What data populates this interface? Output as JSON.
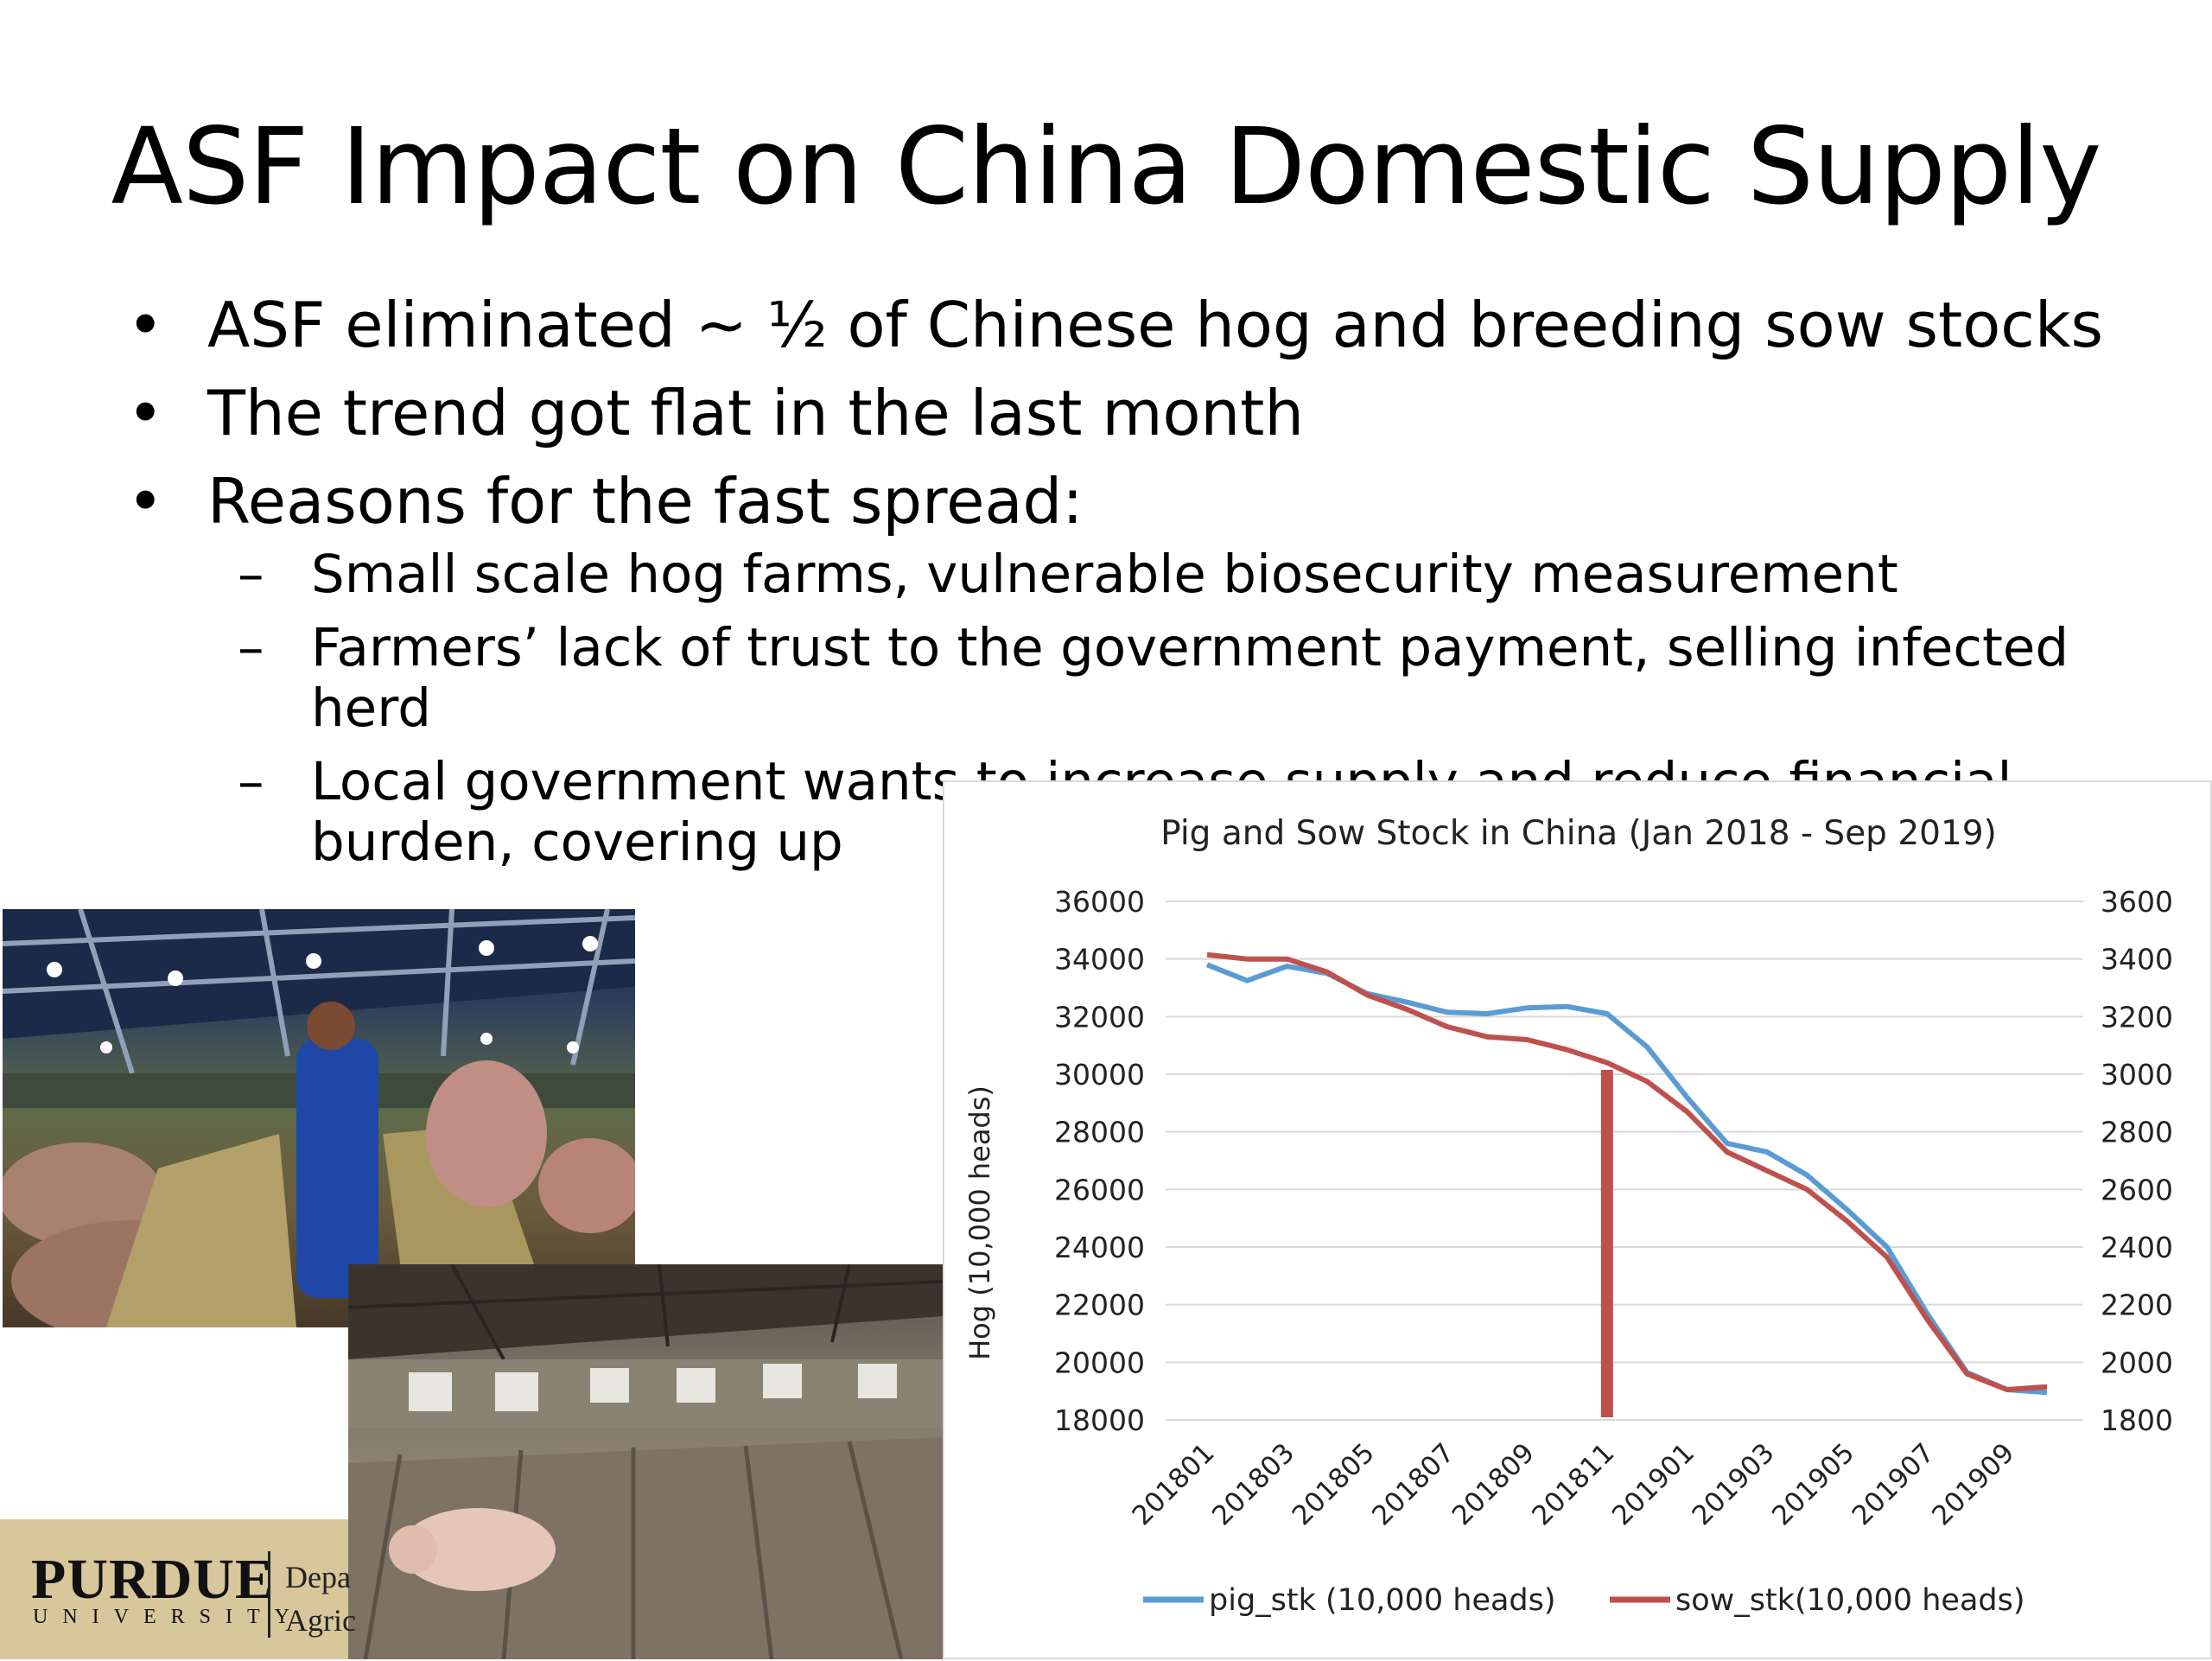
{
  "slide": {
    "title": "ASF Impact on China Domestic Supply",
    "bullets": [
      "ASF eliminated ~ ½ of Chinese hog and breeding sow stocks",
      "The trend got flat in the last month",
      "Reasons for the fast spread:"
    ],
    "sub_bullets": [
      "Small scale hog farms, vulnerable biosecurity measurement",
      "Farmers’ lack of trust to the government payment, selling infected herd",
      "Local government wants to increase supply and reduce financial burden, covering up"
    ],
    "logo": {
      "name": "PURDUE",
      "sub": "UNIVERSITY",
      "dept_line1": "Depa",
      "dept_line2": "Agric"
    }
  },
  "chart_data": {
    "type": "line",
    "title": "Pig and Sow Stock in China (Jan 2018 - Sep 2019)",
    "ylabel": "Hog (10,000 heads)",
    "ylabel_right": "",
    "ylim": [
      18000,
      36000
    ],
    "y2lim": [
      1800,
      3600
    ],
    "yticks": [
      "36000",
      "34000",
      "32000",
      "30000",
      "28000",
      "26000",
      "24000",
      "22000",
      "20000",
      "18000"
    ],
    "y2ticks": [
      "3600",
      "3400",
      "3200",
      "3000",
      "2800",
      "2600",
      "2400",
      "2200",
      "2000",
      "1800"
    ],
    "x": [
      "201801",
      "201802",
      "201803",
      "201804",
      "201805",
      "201806",
      "201807",
      "201808",
      "201809",
      "201810",
      "201811",
      "201812",
      "201901",
      "201902",
      "201903",
      "201904",
      "201905",
      "201906",
      "201907",
      "201908",
      "201909",
      "201910"
    ],
    "xticks": [
      "201801",
      "201803",
      "201805",
      "201807",
      "201809",
      "201811",
      "201901",
      "201903",
      "201905",
      "201907",
      "201909"
    ],
    "series": [
      {
        "name": "pig_stk (10,000 heads)",
        "axis": "left",
        "color": "#5b9bd5",
        "values": [
          33800,
          33250,
          33750,
          33500,
          32800,
          32500,
          32150,
          32100,
          32300,
          32350,
          32100,
          30950,
          29200,
          27600,
          27300,
          26500,
          25300,
          24000,
          21700,
          19650,
          19050,
          18950
        ]
      },
      {
        "name": "sow_stk(10,000 heads)",
        "axis": "right",
        "color": "#c0504d",
        "values": [
          3415,
          3400,
          3400,
          3355,
          3275,
          3225,
          3165,
          3130,
          3120,
          3085,
          3040,
          2975,
          2870,
          2730,
          2665,
          2600,
          2490,
          2365,
          2150,
          1960,
          1905,
          1915
        ]
      }
    ],
    "marker": {
      "x": "201811",
      "top": 3015,
      "color": "#c0504d"
    },
    "legend": "bottom",
    "grid": true
  }
}
